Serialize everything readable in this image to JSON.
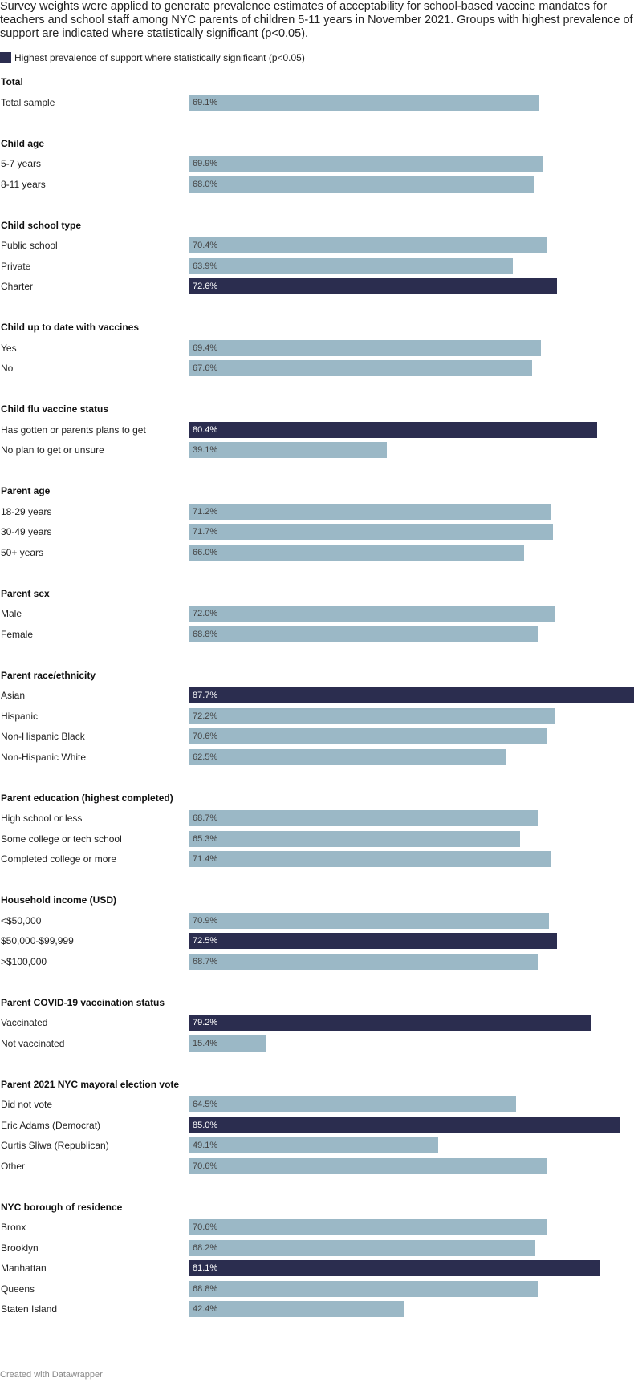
{
  "subtitle": "Survey weights were applied to generate prevalence estimates of acceptability for school-based vaccine mandates for teachers and school staff among NYC parents of children 5-11 years in November 2021. Groups with highest prevalence of support are indicated where statistically significant (p<0.05).",
  "legend": {
    "label": "Highest prevalence of support where statistically significant (p<0.05)"
  },
  "colors": {
    "highlight": "#2b2d4f",
    "default": "#9bb8c6",
    "highlight_text": "#ffffff",
    "default_text": "#444444"
  },
  "footer": "Created with Datawrapper",
  "chart_data": {
    "type": "bar",
    "orientation": "horizontal",
    "unit": "%",
    "xlim": [
      0,
      87.7
    ],
    "groups": [
      {
        "title": "Total",
        "rows": [
          {
            "label": "Total sample",
            "value": 69.1,
            "display": "69.1%",
            "highlight": false
          }
        ]
      },
      {
        "title": "Child age",
        "rows": [
          {
            "label": "5-7 years",
            "value": 69.9,
            "display": "69.9%",
            "highlight": false
          },
          {
            "label": "8-11 years",
            "value": 68.0,
            "display": "68.0%",
            "highlight": false
          }
        ]
      },
      {
        "title": "Child school type",
        "rows": [
          {
            "label": "Public school",
            "value": 70.4,
            "display": "70.4%",
            "highlight": false
          },
          {
            "label": "Private",
            "value": 63.9,
            "display": "63.9%",
            "highlight": false
          },
          {
            "label": "Charter",
            "value": 72.6,
            "display": "72.6%",
            "highlight": true
          }
        ]
      },
      {
        "title": "Child up to date with vaccines",
        "rows": [
          {
            "label": "Yes",
            "value": 69.4,
            "display": "69.4%",
            "highlight": false
          },
          {
            "label": "No",
            "value": 67.6,
            "display": "67.6%",
            "highlight": false
          }
        ]
      },
      {
        "title": "Child flu vaccine status",
        "rows": [
          {
            "label": "Has gotten or parents plans to get",
            "value": 80.4,
            "display": "80.4%",
            "highlight": true
          },
          {
            "label": "No plan to get or unsure",
            "value": 39.1,
            "display": "39.1%",
            "highlight": false
          }
        ]
      },
      {
        "title": "Parent age",
        "rows": [
          {
            "label": "18-29 years",
            "value": 71.2,
            "display": "71.2%",
            "highlight": false
          },
          {
            "label": "30-49 years",
            "value": 71.7,
            "display": "71.7%",
            "highlight": false
          },
          {
            "label": "50+ years",
            "value": 66.0,
            "display": "66.0%",
            "highlight": false
          }
        ]
      },
      {
        "title": "Parent sex",
        "rows": [
          {
            "label": "Male",
            "value": 72.0,
            "display": "72.0%",
            "highlight": false
          },
          {
            "label": "Female",
            "value": 68.8,
            "display": "68.8%",
            "highlight": false
          }
        ]
      },
      {
        "title": "Parent race/ethnicity",
        "rows": [
          {
            "label": "Asian",
            "value": 87.7,
            "display": "87.7%",
            "highlight": true
          },
          {
            "label": "Hispanic",
            "value": 72.2,
            "display": "72.2%",
            "highlight": false
          },
          {
            "label": "Non-Hispanic Black",
            "value": 70.6,
            "display": "70.6%",
            "highlight": false
          },
          {
            "label": "Non-Hispanic White",
            "value": 62.5,
            "display": "62.5%",
            "highlight": false
          }
        ]
      },
      {
        "title": "Parent education (highest completed)",
        "rows": [
          {
            "label": "High school or less",
            "value": 68.7,
            "display": "68.7%",
            "highlight": false
          },
          {
            "label": "Some college or tech school",
            "value": 65.3,
            "display": "65.3%",
            "highlight": false
          },
          {
            "label": "Completed college or more",
            "value": 71.4,
            "display": "71.4%",
            "highlight": false
          }
        ]
      },
      {
        "title": "Household income (USD)",
        "rows": [
          {
            "label": "<$50,000",
            "value": 70.9,
            "display": "70.9%",
            "highlight": false
          },
          {
            "label": "$50,000-$99,999",
            "value": 72.5,
            "display": "72.5%",
            "highlight": true
          },
          {
            "label": ">$100,000",
            "value": 68.7,
            "display": "68.7%",
            "highlight": false
          }
        ]
      },
      {
        "title": "Parent COVID-19 vaccination status",
        "rows": [
          {
            "label": "Vaccinated",
            "value": 79.2,
            "display": "79.2%",
            "highlight": true
          },
          {
            "label": "Not vaccinated",
            "value": 15.4,
            "display": "15.4%",
            "highlight": false
          }
        ]
      },
      {
        "title": "Parent 2021 NYC mayoral election vote",
        "rows": [
          {
            "label": "Did not vote",
            "value": 64.5,
            "display": "64.5%",
            "highlight": false
          },
          {
            "label": "Eric Adams (Democrat)",
            "value": 85.0,
            "display": "85.0%",
            "highlight": true
          },
          {
            "label": "Curtis Sliwa (Republican)",
            "value": 49.1,
            "display": "49.1%",
            "highlight": false
          },
          {
            "label": "Other",
            "value": 70.6,
            "display": "70.6%",
            "highlight": false
          }
        ]
      },
      {
        "title": "NYC borough of residence",
        "rows": [
          {
            "label": "Bronx",
            "value": 70.6,
            "display": "70.6%",
            "highlight": false
          },
          {
            "label": "Brooklyn",
            "value": 68.2,
            "display": "68.2%",
            "highlight": false
          },
          {
            "label": "Manhattan",
            "value": 81.1,
            "display": "81.1%",
            "highlight": true
          },
          {
            "label": "Queens",
            "value": 68.8,
            "display": "68.8%",
            "highlight": false
          },
          {
            "label": "Staten Island",
            "value": 42.4,
            "display": "42.4%",
            "highlight": false
          }
        ]
      }
    ]
  }
}
